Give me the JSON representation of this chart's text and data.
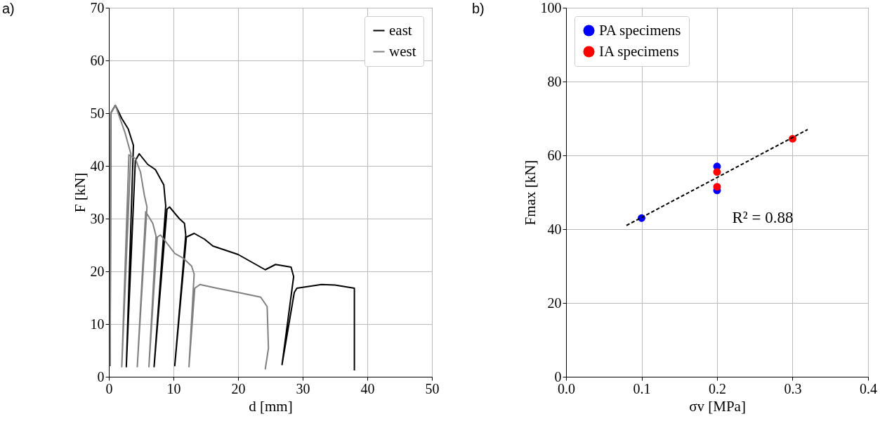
{
  "chart_data": [
    {
      "type": "line",
      "title": "a)",
      "xlabel": "d [mm]",
      "ylabel": "F [kN]",
      "xlim": [
        0,
        50
      ],
      "ylim": [
        0,
        70
      ],
      "xticks": [
        0,
        10,
        20,
        30,
        40,
        50
      ],
      "yticks": [
        0,
        10,
        20,
        30,
        40,
        50,
        60,
        70
      ],
      "grid": true,
      "legend": "top right",
      "marker": "none",
      "series": [
        {
          "name": "east",
          "color": "#000000",
          "x": [
            0.2,
            0.3,
            1.0,
            2.0,
            3.0,
            3.8,
            2.7,
            4.1,
            4.7,
            6.0,
            7.2,
            8.5,
            8.8,
            7.0,
            9.0,
            9.4,
            10.9,
            11.7,
            11.9,
            10.2,
            12.0,
            13.2,
            14.8,
            16.1,
            20.0,
            24.2,
            25.8,
            28.2,
            28.6,
            26.8,
            28.7,
            29.1,
            32.9,
            35.0,
            38.0,
            38.0
          ],
          "values": [
            2,
            50,
            51.5,
            49,
            47,
            43.9,
            1.9,
            41,
            42.3,
            40.3,
            39.3,
            36.4,
            32.4,
            1.9,
            31.8,
            32.2,
            30,
            29.1,
            26.9,
            2.1,
            26.5,
            27.2,
            26.1,
            24.8,
            23.2,
            20.3,
            21.3,
            20.8,
            19,
            2.3,
            16,
            16.8,
            17.5,
            17.4,
            16.8,
            1.2
          ]
        },
        {
          "name": "west",
          "color": "#808080",
          "x": [
            0.2,
            0.3,
            1.0,
            2.5,
            3.4,
            2.0,
            3.1,
            4.1,
            4.9,
            5.5,
            5.9,
            4.4,
            5.7,
            6.8,
            7.3,
            6.2,
            7.5,
            8.0,
            10.2,
            11.5,
            12.8,
            13.2,
            12.4,
            13.3,
            14.1,
            16.7,
            20.0,
            23.5,
            24.5,
            24.7,
            24.2
          ],
          "values": [
            2,
            50,
            51.5,
            46.3,
            42.3,
            1.9,
            42.1,
            41.4,
            38.8,
            34.4,
            32.2,
            1.9,
            31.3,
            29.1,
            26.7,
            1.9,
            26.5,
            26.9,
            23.4,
            22.5,
            21,
            19.5,
            1.9,
            16.8,
            17.5,
            16.8,
            16,
            15.1,
            13.3,
            5.4,
            1.4
          ]
        }
      ]
    },
    {
      "type": "scatter",
      "title": "b)",
      "xlabel": "σv [MPa]",
      "ylabel": "Fmax [kN]",
      "xlim": [
        0,
        0.4
      ],
      "ylim": [
        0,
        100
      ],
      "xticks": [
        {
          "value": 0,
          "label": "0.0"
        },
        0.1,
        0.2,
        0.3,
        0.4
      ],
      "yticks": [
        0,
        20,
        40,
        60,
        80,
        100
      ],
      "grid": true,
      "legend": "top left",
      "marker": "circle",
      "annotations": [
        "R² = 0.88"
      ],
      "series": [
        {
          "name": "PA specimens",
          "color": "#0000ff",
          "x": [
            0.1,
            0.2,
            0.2
          ],
          "values": [
            43,
            57,
            50.5
          ]
        },
        {
          "name": "IA specimens",
          "color": "#ff0000",
          "x": [
            0.2,
            0.2,
            0.3
          ],
          "values": [
            55.5,
            51.5,
            64.5
          ]
        },
        {
          "type": "line",
          "color": "#000000",
          "line_style": "dashed",
          "marker": "none",
          "x": [
            0.08,
            0.32
          ],
          "values": [
            41,
            67
          ]
        }
      ]
    }
  ]
}
